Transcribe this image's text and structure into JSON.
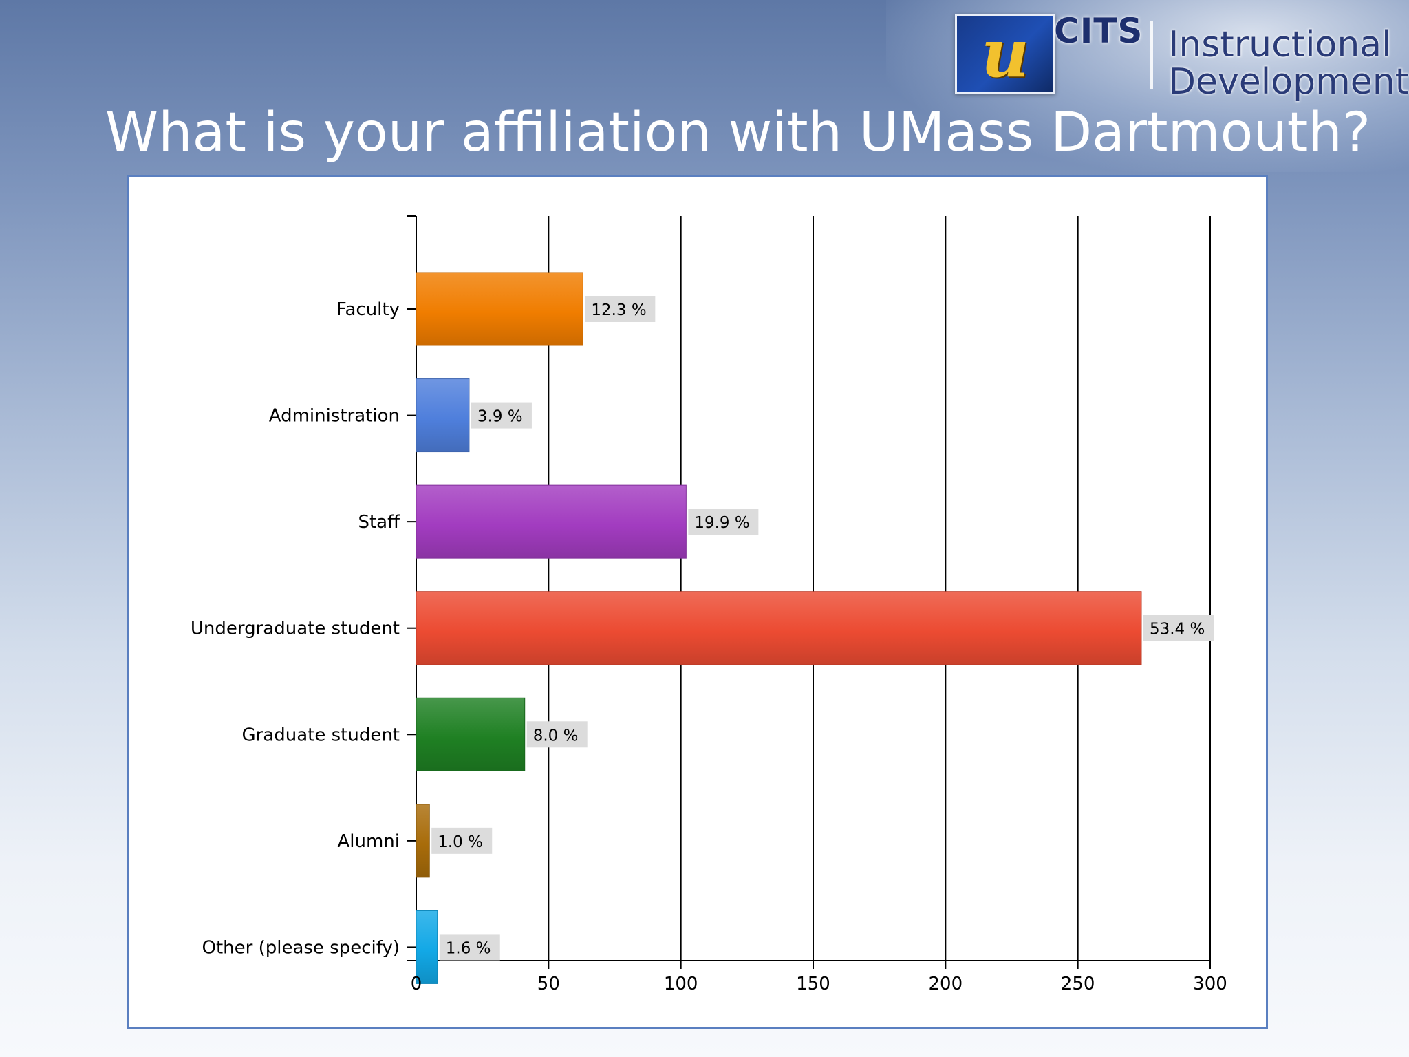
{
  "header": {
    "title": "What is your affiliation with UMass Dartmouth?",
    "logo_text": "CITS",
    "brand_line1": "Instructional",
    "brand_line2": "Development"
  },
  "chart_data": {
    "type": "bar",
    "orientation": "horizontal",
    "categories": [
      "Faculty",
      "Administration",
      "Staff",
      "Undergraduate student",
      "Graduate student",
      "Alumni",
      "Other (please specify)"
    ],
    "values": [
      63,
      20,
      102,
      274,
      41,
      5,
      8
    ],
    "data_labels": [
      "12.3 %",
      "3.9 %",
      "19.9 %",
      "53.4 %",
      "8.0 %",
      "1.0 %",
      "1.6 %"
    ],
    "colors": [
      "#f07d00",
      "#4f7fdc",
      "#a23cc0",
      "#ec4b32",
      "#1f8023",
      "#a86c0a",
      "#12a8e6"
    ],
    "xlim": [
      0,
      300
    ],
    "xticks": [
      0,
      50,
      100,
      150,
      200,
      250,
      300
    ],
    "grid": true
  }
}
